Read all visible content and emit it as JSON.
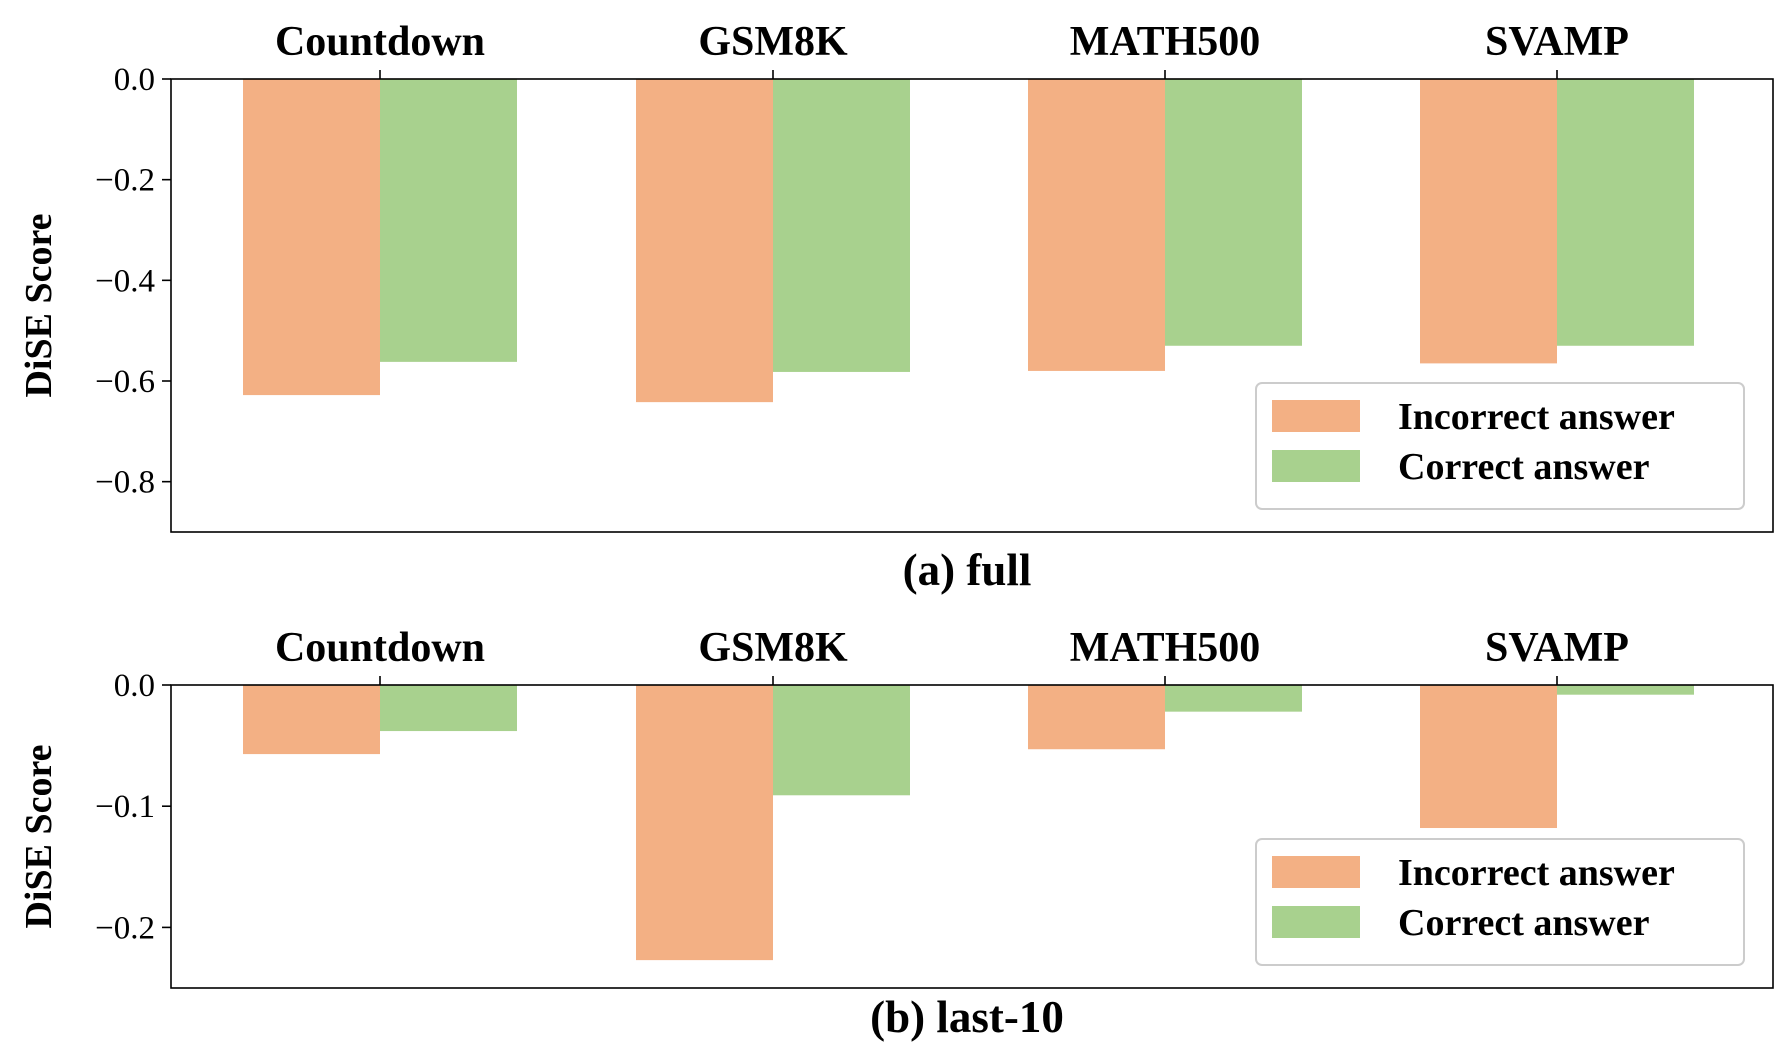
{
  "chart_data": [
    {
      "type": "bar",
      "caption": "(a) full",
      "ylabel": "DiSE Score",
      "ylim": [
        -0.9,
        0.0
      ],
      "yticks": [
        0.0,
        -0.2,
        -0.4,
        -0.6,
        -0.8
      ],
      "ytick_labels": [
        "0.0",
        "−0.2",
        "−0.4",
        "−0.6",
        "−0.8"
      ],
      "categories": [
        "Countdown",
        "GSM8K",
        "MATH500",
        "SVAMP"
      ],
      "category_axis_position": "top",
      "legend_position": "lower-right",
      "series": [
        {
          "name": "Incorrect answer",
          "color": "#f3b084",
          "values": [
            -0.628,
            -0.642,
            -0.58,
            -0.565
          ]
        },
        {
          "name": "Correct answer",
          "color": "#a8d18e",
          "values": [
            -0.562,
            -0.582,
            -0.53,
            -0.53
          ]
        }
      ]
    },
    {
      "type": "bar",
      "caption": "(b) last-10",
      "ylabel": "DiSE Score",
      "ylim": [
        -0.25,
        0.0
      ],
      "yticks": [
        0.0,
        -0.1,
        -0.2
      ],
      "ytick_labels": [
        "0.0",
        "−0.1",
        "−0.2"
      ],
      "categories": [
        "Countdown",
        "GSM8K",
        "MATH500",
        "SVAMP"
      ],
      "category_axis_position": "top",
      "legend_position": "lower-right",
      "series": [
        {
          "name": "Incorrect answer",
          "color": "#f3b084",
          "values": [
            -0.057,
            -0.227,
            -0.053,
            -0.118
          ]
        },
        {
          "name": "Correct answer",
          "color": "#a8d18e",
          "values": [
            -0.038,
            -0.091,
            -0.022,
            -0.008
          ]
        }
      ]
    }
  ]
}
